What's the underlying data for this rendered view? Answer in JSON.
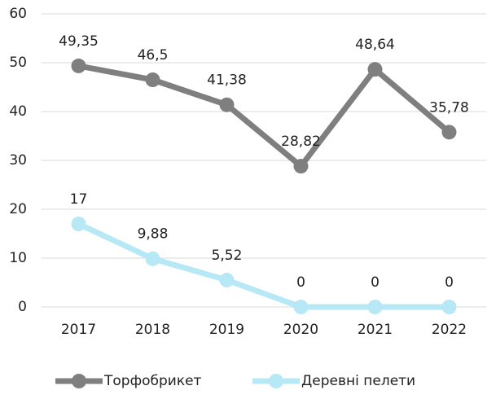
{
  "chart_data": {
    "type": "line",
    "categories": [
      "2017",
      "2018",
      "2019",
      "2020",
      "2021",
      "2022"
    ],
    "series": [
      {
        "name": "Торфобрикет",
        "color": "#7f7f7f",
        "values": [
          49.35,
          46.5,
          41.38,
          28.82,
          48.64,
          35.78
        ],
        "value_labels": [
          "49,35",
          "46,5",
          "41,38",
          "28,82",
          "48,64",
          "35,78"
        ]
      },
      {
        "name": "Деревні пелети",
        "color": "#b7e8f5",
        "values": [
          17,
          9.88,
          5.52,
          0,
          0,
          0
        ],
        "value_labels": [
          "17",
          "9,88",
          "5,52",
          "0",
          "0",
          "0"
        ]
      }
    ],
    "ylim": [
      0,
      60
    ],
    "yticks": [
      0,
      10,
      20,
      30,
      40,
      50,
      60
    ],
    "grid": true,
    "legend": "bottom"
  }
}
